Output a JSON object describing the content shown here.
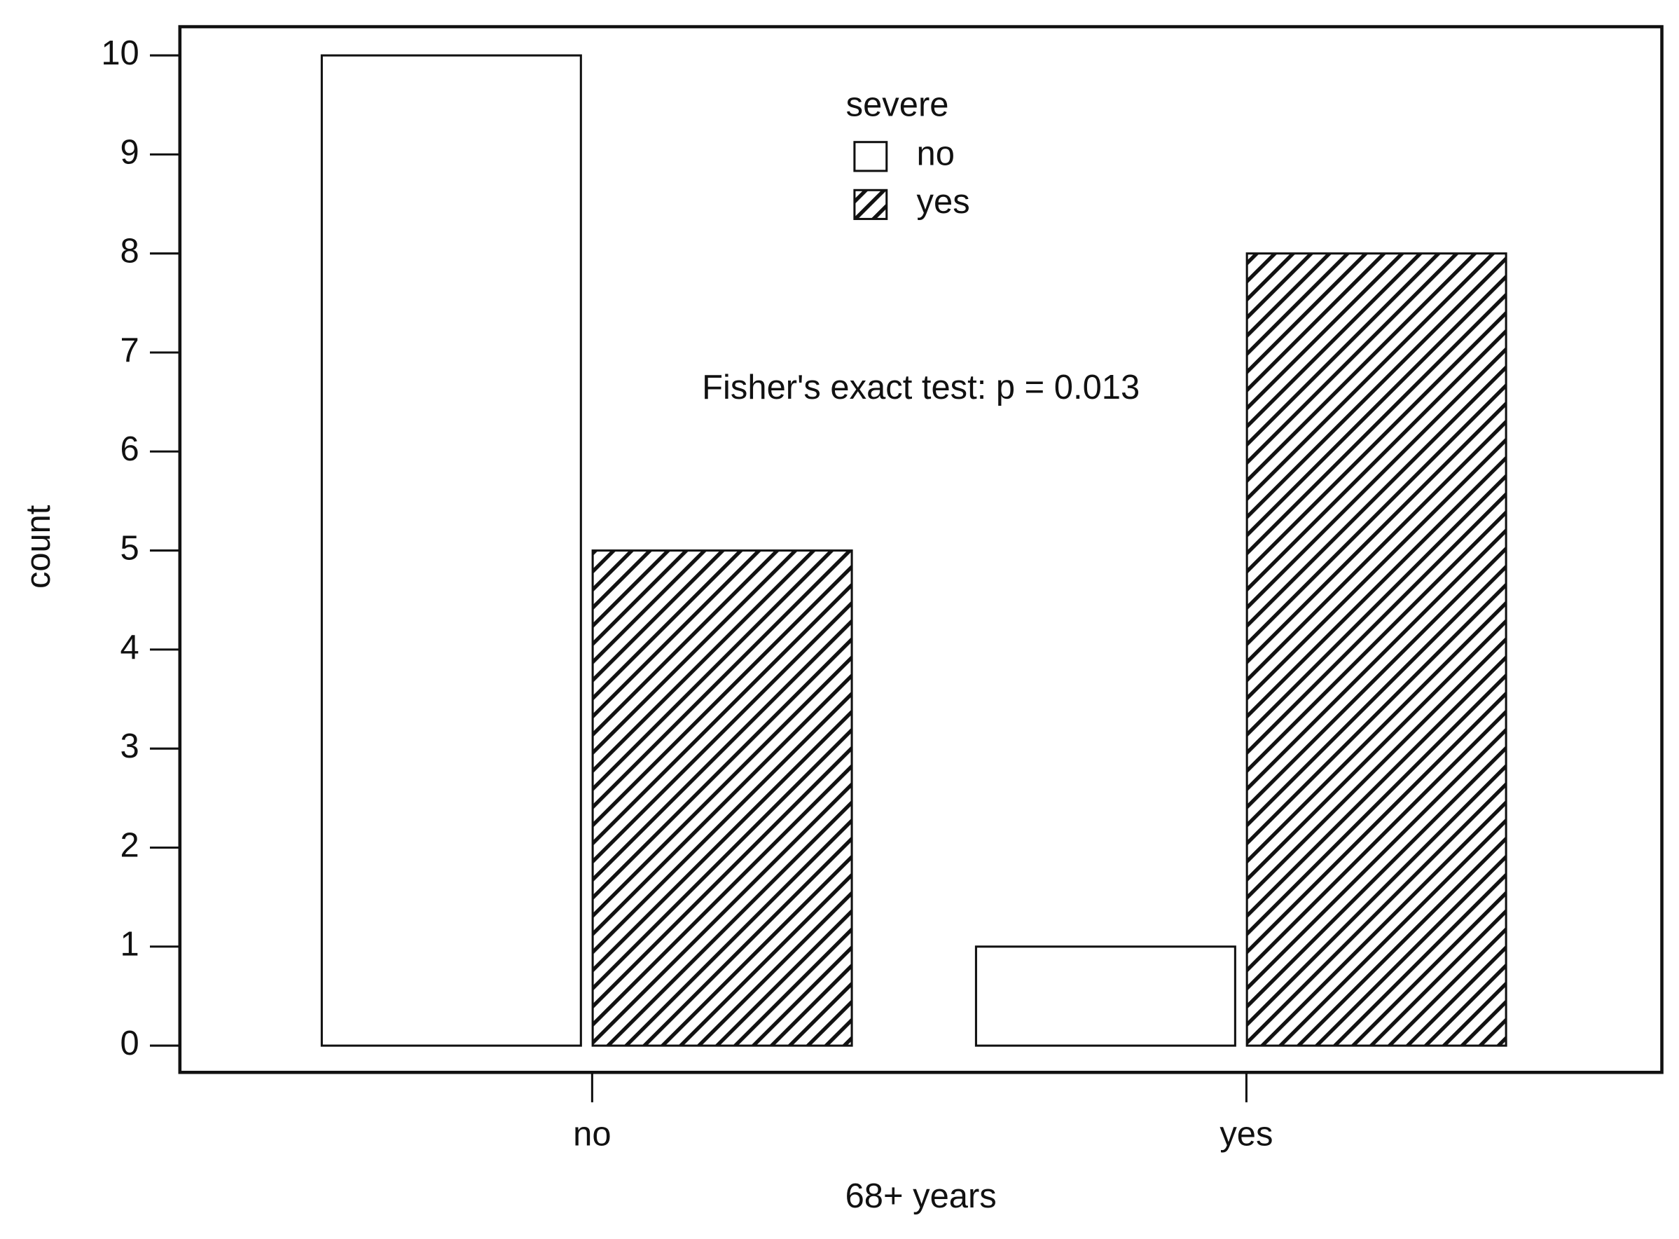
{
  "chart_data": {
    "type": "bar",
    "categories": [
      "no",
      "yes"
    ],
    "series": [
      {
        "name": "no",
        "color": "#ffffff",
        "hatch": false,
        "values": [
          10,
          1
        ]
      },
      {
        "name": "yes",
        "color": "#ffffff",
        "hatch": true,
        "values": [
          5,
          8
        ]
      }
    ],
    "xlabel": "68+ years",
    "ylabel": "count",
    "legend_title": "severe",
    "legend": "top",
    "annotation": "Fisher's exact test: p = 0.013",
    "ylim": [
      -0.27,
      10.29
    ],
    "yticks": [
      0,
      1,
      2,
      3,
      4,
      5,
      6,
      7,
      8,
      9,
      10
    ]
  }
}
